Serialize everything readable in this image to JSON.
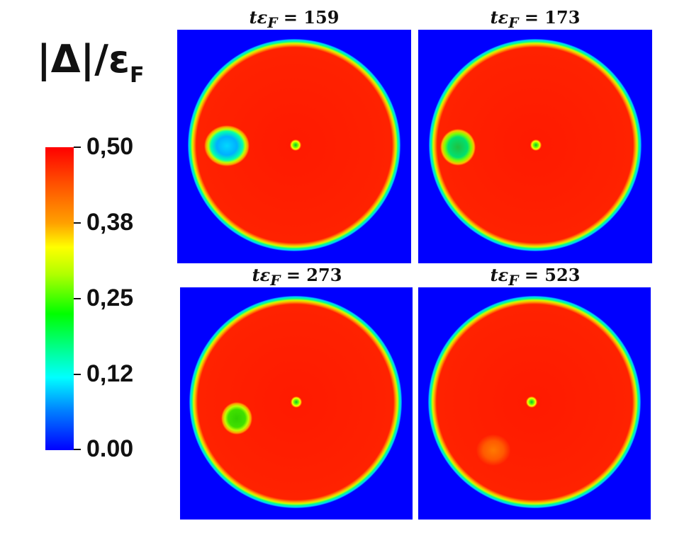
{
  "colorbar": {
    "title_main": "|Δ|/ε",
    "title_sub": "F",
    "ticks": [
      "0,50",
      "0,38",
      "0,25",
      "0,12",
      "0.00"
    ],
    "max": 0.5,
    "min": 0.0
  },
  "panels": [
    {
      "t_label": "tε",
      "t_sub": "F",
      "eq": " = 159",
      "vortex_intensity": "strong"
    },
    {
      "t_label": "tε",
      "t_sub": "F",
      "eq": " = 173",
      "vortex_intensity": "medium"
    },
    {
      "t_label": "tε",
      "t_sub": "F",
      "eq": " = 273",
      "vortex_intensity": "weak"
    },
    {
      "t_label": "tε",
      "t_sub": "F",
      "eq": " = 523",
      "vortex_intensity": "faint"
    }
  ],
  "colors": {
    "background": "#0000ff",
    "disk": "#ff1a00",
    "ring_outer": "#00e0ff",
    "ring_mid": "#ffff00"
  }
}
